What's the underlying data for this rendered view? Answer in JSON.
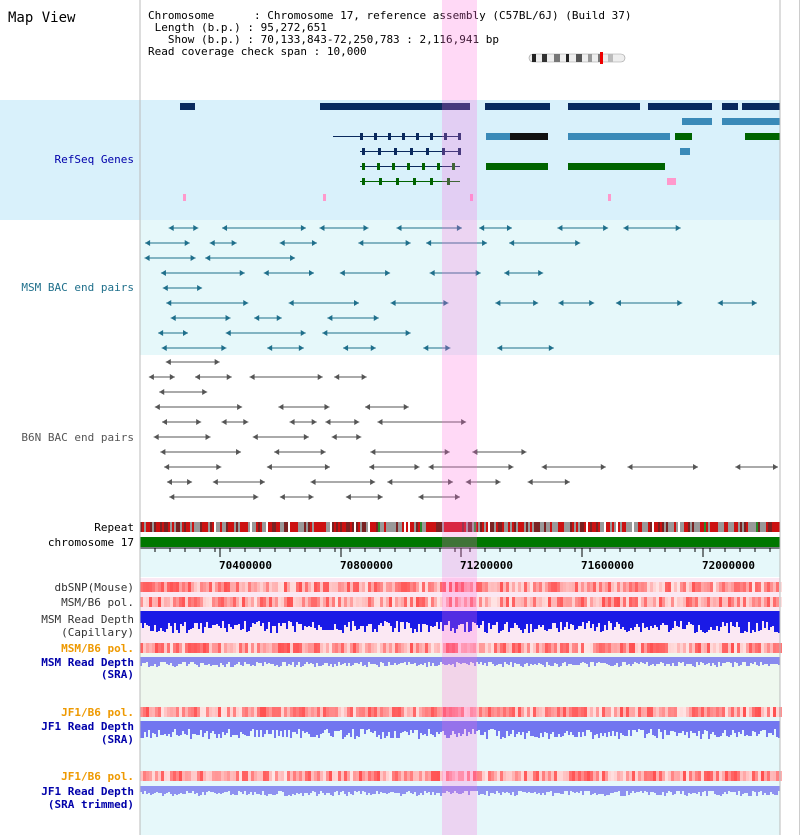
{
  "title": "Map View",
  "info": {
    "chromosome_key": "Chromosome",
    "chromosome_val": "Chromosome 17, reference assembly (C57BL/6J) (Build 37)",
    "length_key": "Length (b.p.)",
    "length_val": "95,272,651",
    "show_key": "Show (b.p.)",
    "show_val": "70,133,843-72,250,783 : 2,116,941 bp",
    "coverage_key": "Read coverage check span",
    "coverage_val": "10,000"
  },
  "tracks": {
    "refseq": "RefSeq Genes",
    "msm_bac": "MSM BAC end pairs",
    "b6n_bac": "B6N BAC end pairs",
    "repeat": "Repeat",
    "chromosome": "chromosome 17",
    "dbsnp": "dbSNP(Mouse)",
    "msm_b6_pol_1": "MSM/B6 pol.",
    "msm_depth_cap_1": "MSM Read Depth",
    "msm_depth_cap_2": "(Capillary)",
    "msm_b6_pol_2": "MSM/B6 pol.",
    "msm_depth_sra_1": "MSM Read Depth",
    "msm_depth_sra_2": "(SRA)",
    "jf1_b6_pol_1": "JF1/B6 pol.",
    "jf1_depth_sra_1": "JF1 Read Depth",
    "jf1_depth_sra_2": "(SRA)",
    "jf1_b6_pol_2": "JF1/B6 pol.",
    "jf1_depth_trim_1": "JF1 Read Depth",
    "jf1_depth_trim_2": "(SRA trimmed)"
  },
  "axis_ticks": [
    "70400000",
    "70800000",
    "71200000",
    "71600000",
    "72000000"
  ],
  "colors": {
    "gene_dark": "#0a2a5e",
    "gene_mid": "#3a8ab8",
    "gene_green": "#006400",
    "msm_bac": "#1f6f8b",
    "b6n_bac": "#555555",
    "highlight": "#ff66dd",
    "label_blue": "#0000aa",
    "label_orange": "#ee9900",
    "label_teal": "#1f6f8b",
    "chrom_green": "#007700"
  }
}
